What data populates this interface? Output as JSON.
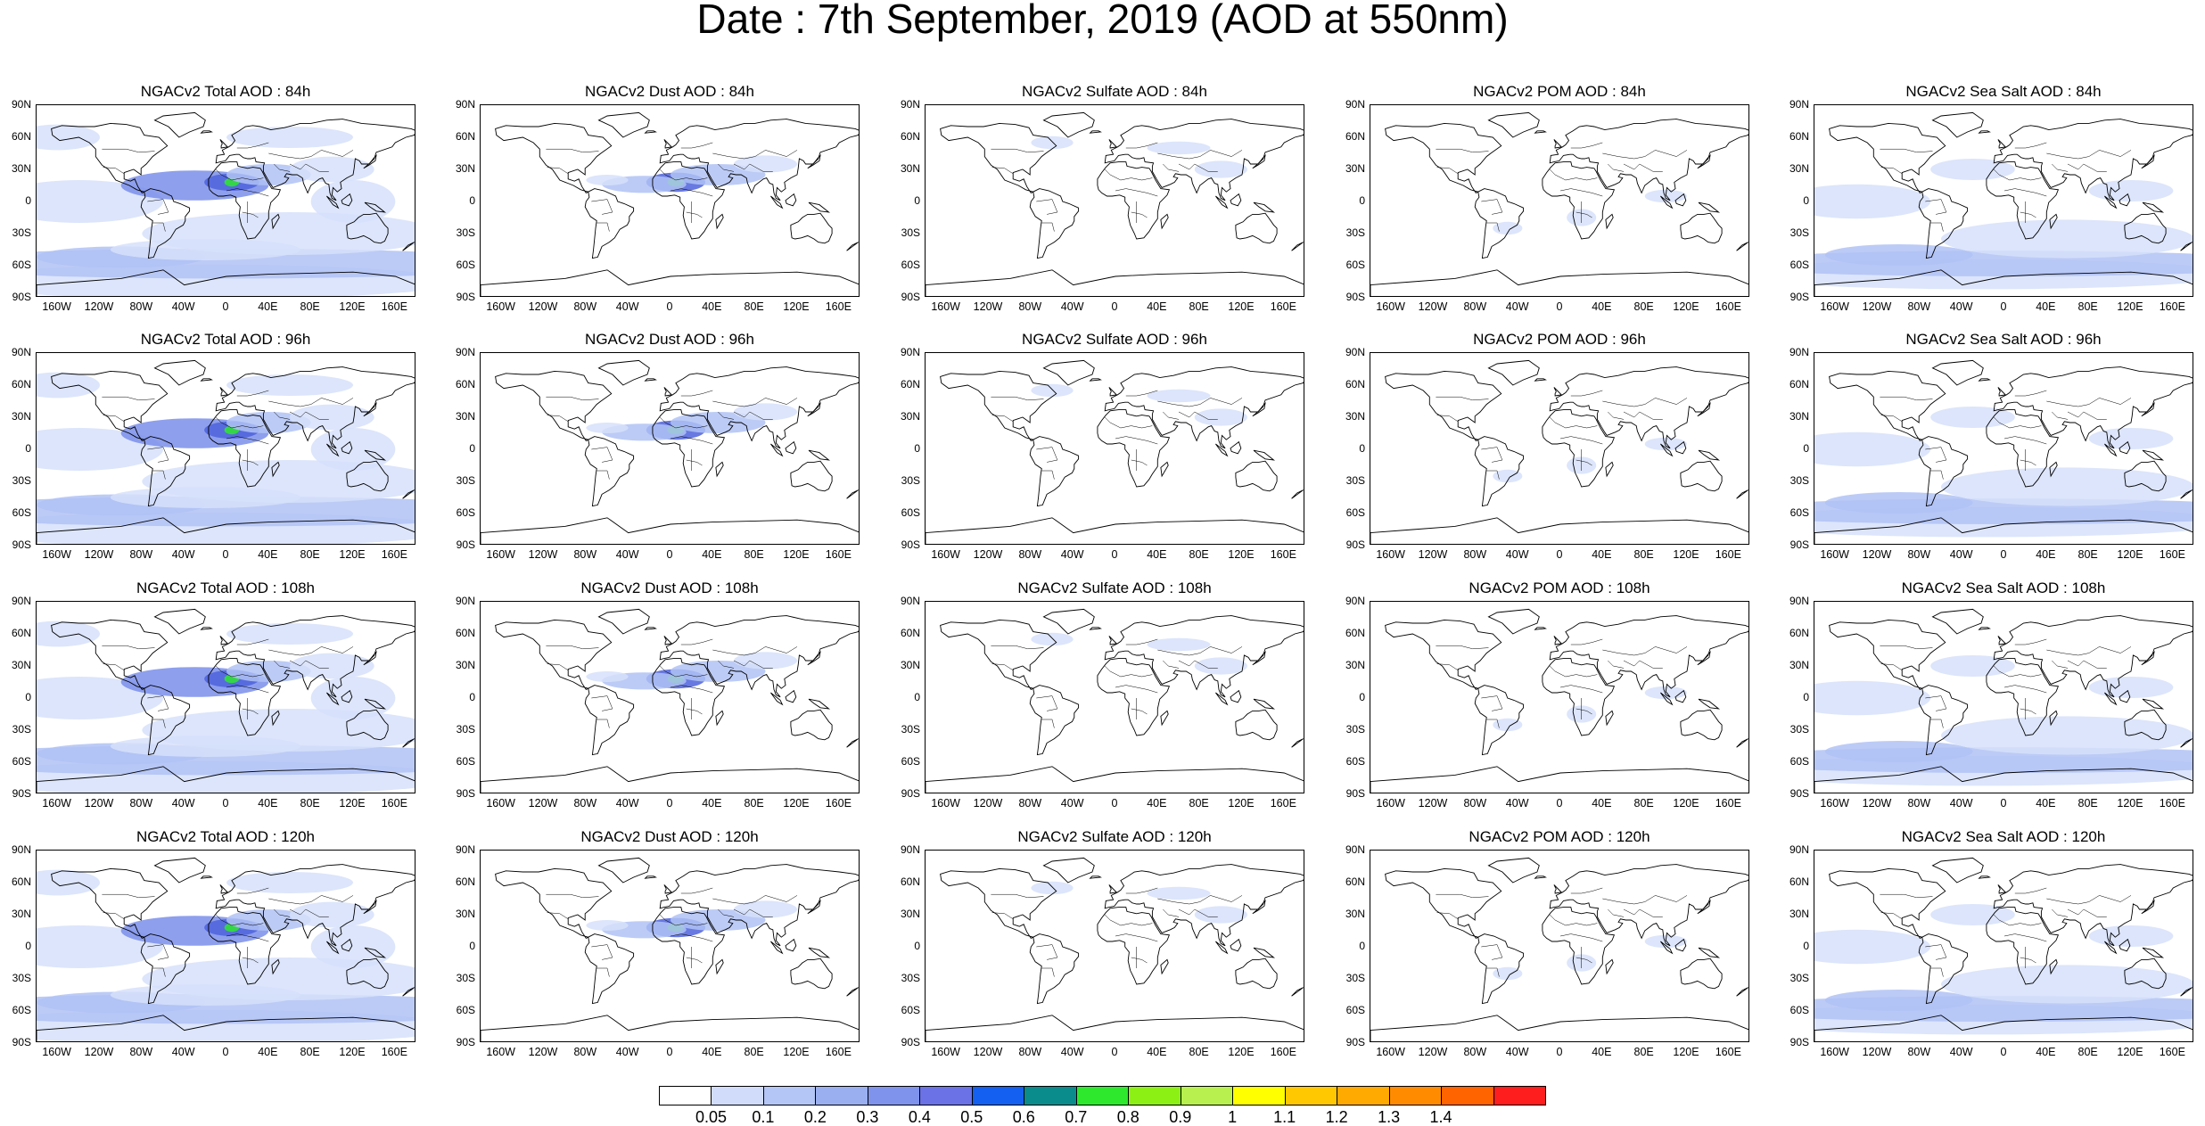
{
  "title": "Date : 7th September, 2019 (AOD at 550nm)",
  "lat_ticks": [
    "90N",
    "60N",
    "30N",
    "0",
    "30S",
    "60S",
    "90S"
  ],
  "lon_ticks": [
    "160W",
    "120W",
    "80W",
    "40W",
    "0",
    "40E",
    "80E",
    "120E",
    "160E"
  ],
  "lon_values": [
    -160,
    -120,
    -80,
    -40,
    0,
    40,
    80,
    120,
    160
  ],
  "lat_values": [
    90,
    60,
    30,
    0,
    -30,
    -60,
    -90
  ],
  "columns": [
    "total",
    "dust",
    "sulfate",
    "pom",
    "seasalt"
  ],
  "rows": [
    {
      "hour": "84h",
      "titles": [
        "NGACv2 Total AOD : 84h",
        "NGACv2 Dust AOD : 84h",
        "NGACv2 Sulfate AOD : 84h",
        "NGACv2 POM AOD : 84h",
        "NGACv2 Sea Salt AOD : 84h"
      ]
    },
    {
      "hour": "96h",
      "titles": [
        "NGACv2 Total AOD : 96h",
        "NGACv2 Dust AOD : 96h",
        "NGACv2 Sulfate AOD : 96h",
        "NGACv2 POM AOD : 96h",
        "NGACv2 Sea Salt AOD : 96h"
      ]
    },
    {
      "hour": "108h",
      "titles": [
        "NGACv2 Total AOD : 108h",
        "NGACv2 Dust AOD : 108h",
        "NGACv2 Sulfate AOD : 108h",
        "NGACv2 POM AOD : 108h",
        "NGACv2 Sea Salt AOD : 108h"
      ]
    },
    {
      "hour": "120h",
      "titles": [
        "NGACv2 Total AOD : 120h",
        "NGACv2 Dust AOD : 120h",
        "NGACv2 Sulfate AOD : 120h",
        "NGACv2 POM AOD : 120h",
        "NGACv2 Sea Salt  AOD : 120h"
      ]
    }
  ],
  "colorbar": {
    "colors": [
      "#ffffff",
      "#d0dcfa",
      "#b4c6f5",
      "#9aaff0",
      "#7f93ec",
      "#6a72e6",
      "#1460f0",
      "#0a8c8c",
      "#2ee82e",
      "#8cf014",
      "#b8f050",
      "#ffff00",
      "#ffc800",
      "#ffaa00",
      "#ff8c00",
      "#ff6400",
      "#ff1e1e"
    ],
    "labels": [
      "0.05",
      "0.1",
      "0.2",
      "0.3",
      "0.4",
      "0.5",
      "0.6",
      "0.7",
      "0.8",
      "0.9",
      "1",
      "1.1",
      "1.2",
      "1.3",
      "1.4"
    ]
  },
  "colors": {
    "coast": "#000000",
    "light": "#d6e0fa",
    "mid": "#b0c2f4",
    "strong": "#7a8eea",
    "deep": "#4e62dc",
    "hot": "#2ee82e",
    "yellow": "#e8f050"
  }
}
